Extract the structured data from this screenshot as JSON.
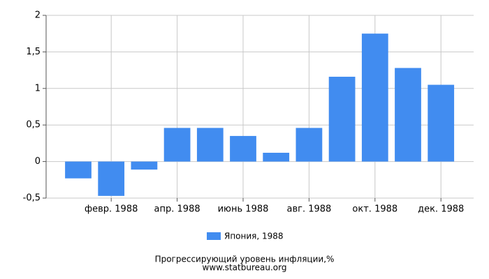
{
  "chart_data": {
    "type": "bar",
    "title": "Прогрессирующий уровень инфляции,%",
    "subtitle": "www.statbureau.org",
    "categories": [
      null,
      "февр. 1988",
      null,
      "апр. 1988",
      null,
      "июнь 1988",
      null,
      "авг. 1988",
      null,
      "окт. 1988",
      null,
      "дек. 1988"
    ],
    "series": [
      {
        "name": "Япония, 1988",
        "color": "#418cf0",
        "values": [
          -0.23,
          -0.47,
          -0.11,
          0.46,
          0.46,
          0.35,
          0.12,
          0.46,
          1.16,
          1.75,
          1.28,
          1.05
        ]
      }
    ],
    "ylim": [
      -0.5,
      2
    ],
    "yticks": [
      {
        "value": -0.5,
        "label": "-0,5"
      },
      0,
      {
        "value": 0.5,
        "label": "0,5"
      },
      1,
      {
        "value": 1.5,
        "label": "1,5"
      },
      2
    ],
    "grid": true
  }
}
